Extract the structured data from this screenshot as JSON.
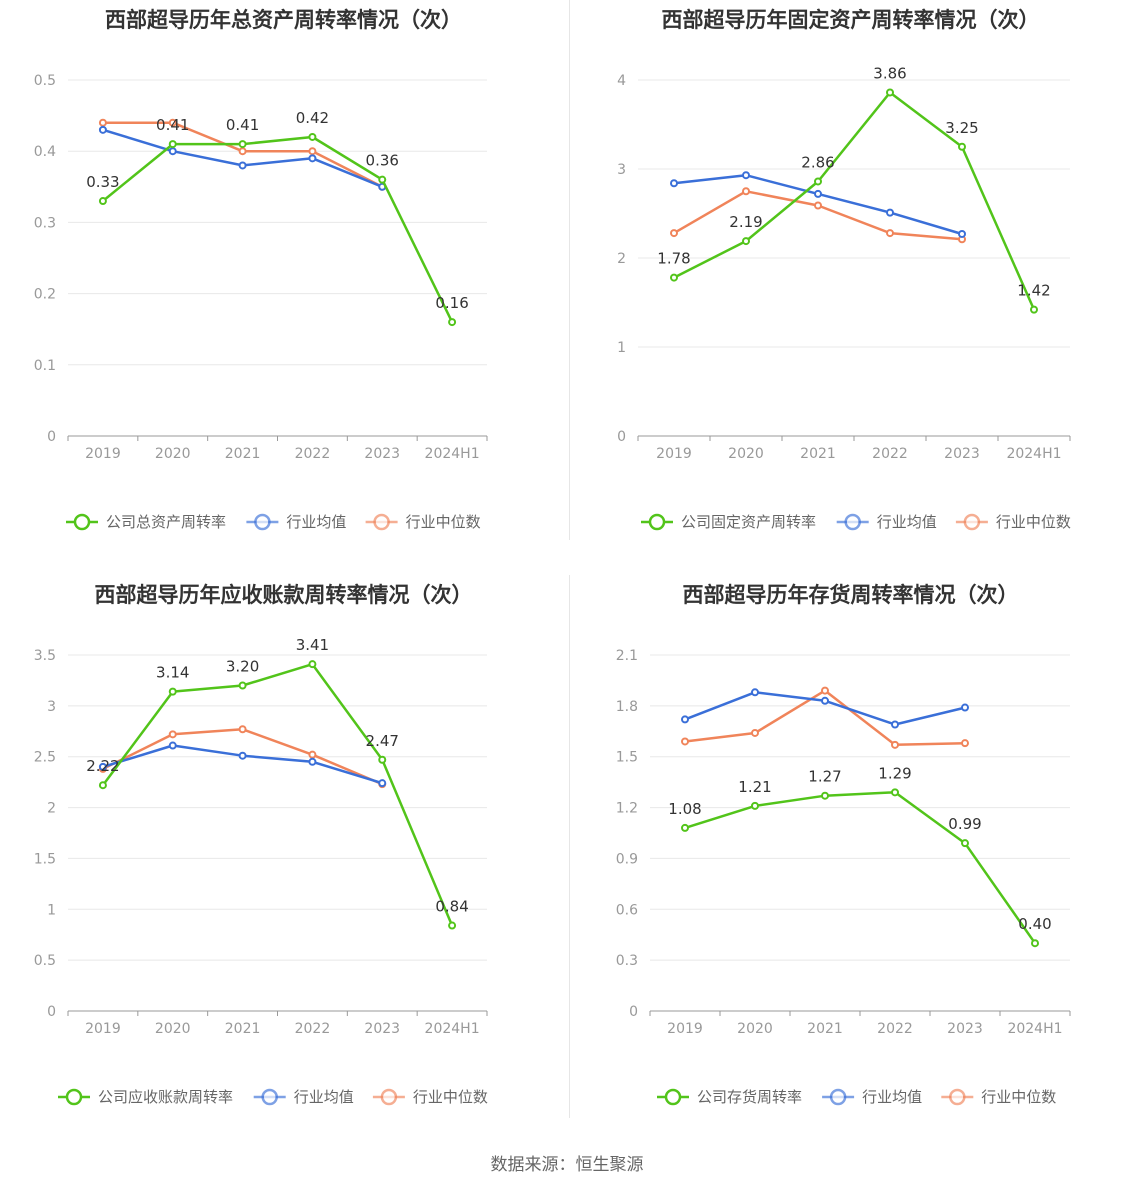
{
  "source": "数据来源：恒生聚源",
  "colors": {
    "company": "#52c41a",
    "avg": "#3a6fd8",
    "median": "#f0845a",
    "grid": "#e8e8e8",
    "axis": "#999999"
  },
  "chart_data": [
    {
      "type": "line",
      "title": "西部超导历年总资产周转率情况（次）",
      "categories": [
        "2019",
        "2020",
        "2021",
        "2022",
        "2023",
        "2024H1"
      ],
      "ylim": [
        0,
        0.5
      ],
      "yticks": [
        0,
        0.1,
        0.2,
        0.3,
        0.4,
        0.5
      ],
      "ytick_labels": [
        "0",
        "0.1",
        "0.2",
        "0.3",
        "0.4",
        "0.5"
      ],
      "series": [
        {
          "name": "公司总资产周转率",
          "color": "#52c41a",
          "values": [
            0.33,
            0.41,
            0.41,
            0.42,
            0.36,
            0.16
          ],
          "labels": [
            "0.33",
            "0.41",
            "0.41",
            "0.42",
            "0.36",
            "0.16"
          ]
        },
        {
          "name": "行业均值",
          "color": "#3a6fd8",
          "values": [
            0.43,
            0.4,
            0.38,
            0.39,
            0.35,
            null
          ]
        },
        {
          "name": "行业中位数",
          "color": "#f0845a",
          "values": [
            0.44,
            0.44,
            0.4,
            0.4,
            0.35,
            null
          ]
        }
      ]
    },
    {
      "type": "line",
      "title": "西部超导历年固定资产周转率情况（次）",
      "categories": [
        "2019",
        "2020",
        "2021",
        "2022",
        "2023",
        "2024H1"
      ],
      "ylim": [
        0,
        4
      ],
      "yticks": [
        0,
        1,
        2,
        3,
        4
      ],
      "ytick_labels": [
        "0",
        "1",
        "2",
        "3",
        "4"
      ],
      "series": [
        {
          "name": "公司固定资产周转率",
          "color": "#52c41a",
          "values": [
            1.78,
            2.19,
            2.86,
            3.86,
            3.25,
            1.42
          ],
          "labels": [
            "1.78",
            "2.19",
            "2.86",
            "3.86",
            "3.25",
            "1.42"
          ]
        },
        {
          "name": "行业均值",
          "color": "#3a6fd8",
          "values": [
            2.84,
            2.93,
            2.72,
            2.51,
            2.27,
            null
          ]
        },
        {
          "name": "行业中位数",
          "color": "#f0845a",
          "values": [
            2.28,
            2.75,
            2.59,
            2.28,
            2.21,
            null
          ]
        }
      ]
    },
    {
      "type": "line",
      "title": "西部超导历年应收账款周转率情况（次）",
      "categories": [
        "2019",
        "2020",
        "2021",
        "2022",
        "2023",
        "2024H1"
      ],
      "ylim": [
        0,
        3.5
      ],
      "yticks": [
        0,
        0.5,
        1,
        1.5,
        2,
        2.5,
        3,
        3.5
      ],
      "ytick_labels": [
        "0",
        "0.5",
        "1",
        "1.5",
        "2",
        "2.5",
        "3",
        "3.5"
      ],
      "series": [
        {
          "name": "公司应收账款周转率",
          "color": "#52c41a",
          "values": [
            2.22,
            3.14,
            3.2,
            3.41,
            2.47,
            0.84
          ],
          "labels": [
            "2.22",
            "3.14",
            "3.20",
            "3.41",
            "2.47",
            "0.84"
          ]
        },
        {
          "name": "行业均值",
          "color": "#3a6fd8",
          "values": [
            2.4,
            2.61,
            2.51,
            2.45,
            2.24,
            null
          ]
        },
        {
          "name": "行业中位数",
          "color": "#f0845a",
          "values": [
            2.38,
            2.72,
            2.77,
            2.52,
            2.23,
            null
          ]
        }
      ]
    },
    {
      "type": "line",
      "title": "西部超导历年存货周转率情况（次）",
      "categories": [
        "2019",
        "2020",
        "2021",
        "2022",
        "2023",
        "2024H1"
      ],
      "ylim": [
        0,
        2.1
      ],
      "yticks": [
        0,
        0.3,
        0.6,
        0.9,
        1.2,
        1.5,
        1.8,
        2.1
      ],
      "ytick_labels": [
        "0",
        "0.3",
        "0.6",
        "0.9",
        "1.2",
        "1.5",
        "1.8",
        "2.1"
      ],
      "series": [
        {
          "name": "公司存货周转率",
          "color": "#52c41a",
          "values": [
            1.08,
            1.21,
            1.27,
            1.29,
            0.99,
            0.4
          ],
          "labels": [
            "1.08",
            "1.21",
            "1.27",
            "1.29",
            "0.99",
            "0.40"
          ]
        },
        {
          "name": "行业均值",
          "color": "#3a6fd8",
          "values": [
            1.72,
            1.88,
            1.83,
            1.69,
            1.79,
            null
          ]
        },
        {
          "name": "行业中位数",
          "color": "#f0845a",
          "values": [
            1.59,
            1.64,
            1.89,
            1.57,
            1.58,
            null
          ]
        }
      ]
    }
  ]
}
